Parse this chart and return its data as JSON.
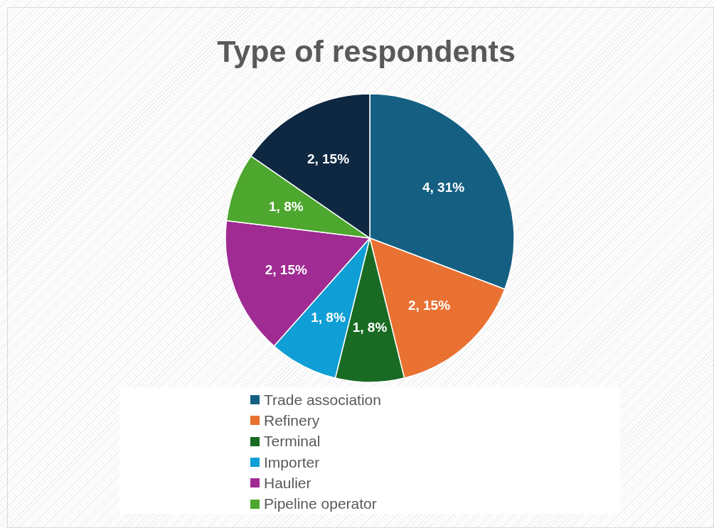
{
  "chart_data": {
    "type": "pie",
    "title": "Type of respondents",
    "categories": [
      "Trade association",
      "Refinery",
      "Terminal",
      "Importer",
      "Haulier",
      "Pipeline operator",
      null
    ],
    "values": [
      4,
      2,
      1,
      1,
      2,
      1,
      2
    ],
    "colors": [
      "#156082",
      "#e97132",
      "#196b24",
      "#0f9ed5",
      "#a02b93",
      "#4ea72e",
      "#0e2841"
    ],
    "value_labels": [
      "4, 31%",
      "2, 15%",
      "1, 8%",
      "1, 8%",
      "2, 15%",
      "1, 8%",
      "2, 15%"
    ],
    "legend": "bottom"
  }
}
